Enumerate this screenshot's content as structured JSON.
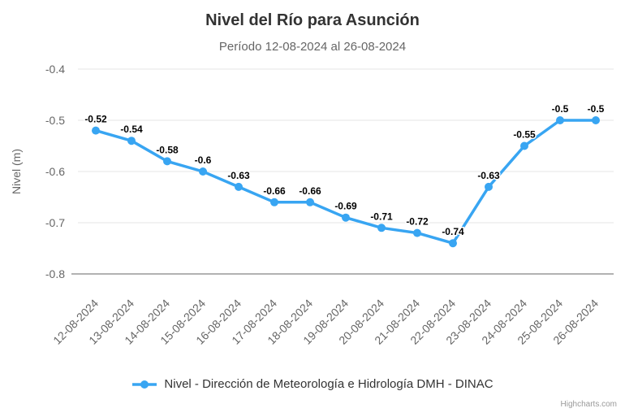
{
  "chart_data": {
    "type": "line",
    "title": "Nivel del Río para Asunción",
    "subtitle": "Período 12-08-2024 al 26-08-2024",
    "xlabel": "",
    "ylabel": "Nivel (m)",
    "ylim": [
      -0.8,
      -0.4
    ],
    "yticks": [
      -0.4,
      -0.5,
      -0.6,
      -0.7,
      -0.8
    ],
    "grid": true,
    "legend_position": "bottom",
    "data_labels": true,
    "x_label_rotation": -45,
    "categories": [
      "12-08-2024",
      "13-08-2024",
      "14-08-2024",
      "15-08-2024",
      "16-08-2024",
      "17-08-2024",
      "18-08-2024",
      "19-08-2024",
      "20-08-2024",
      "21-08-2024",
      "22-08-2024",
      "23-08-2024",
      "24-08-2024",
      "25-08-2024",
      "26-08-2024"
    ],
    "series": [
      {
        "name": "Nivel - Dirección de Meteorología e Hidrología DMH - DINAC",
        "color": "#38a5f2",
        "marker": "circle",
        "values": [
          -0.52,
          -0.54,
          -0.58,
          -0.6,
          -0.63,
          -0.66,
          -0.66,
          -0.69,
          -0.71,
          -0.72,
          -0.74,
          -0.63,
          -0.55,
          -0.5,
          -0.5
        ]
      }
    ]
  },
  "colors": {
    "title_text": "#333333",
    "subtitle_text": "#666666",
    "axis_text": "#666666",
    "axis_line": "#666666",
    "grid_line": "#e6e6e6",
    "data_label": "#000000",
    "background": "#ffffff",
    "credits_text": "#999999"
  },
  "credits": {
    "label": "Highcharts.com"
  }
}
